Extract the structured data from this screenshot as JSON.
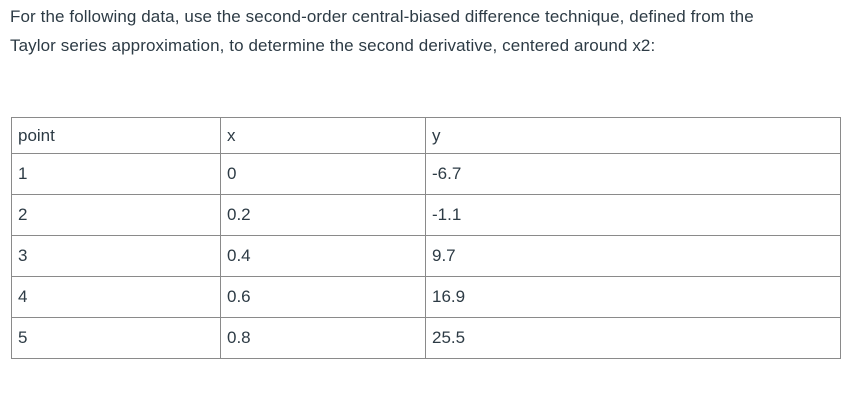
{
  "question": {
    "lines": [
      "For the following data, use the second-order central-biased difference technique, defined from the",
      "Taylor series approximation, to determine the second derivative, centered around x2:"
    ]
  },
  "table": {
    "columns": {
      "point": "point",
      "x": "x",
      "y": "y"
    },
    "rows": [
      {
        "point": "1",
        "x": "0",
        "y": "-6.7"
      },
      {
        "point": "2",
        "x": "0.2",
        "y": "-1.1"
      },
      {
        "point": "3",
        "x": "0.4",
        "y": "9.7"
      },
      {
        "point": "4",
        "x": "0.6",
        "y": "16.9"
      },
      {
        "point": "5",
        "x": "0.8",
        "y": "25.5"
      }
    ]
  },
  "colors": {
    "text": "#2d3b45",
    "table_border": "#8a8a8a",
    "background": "#ffffff"
  }
}
